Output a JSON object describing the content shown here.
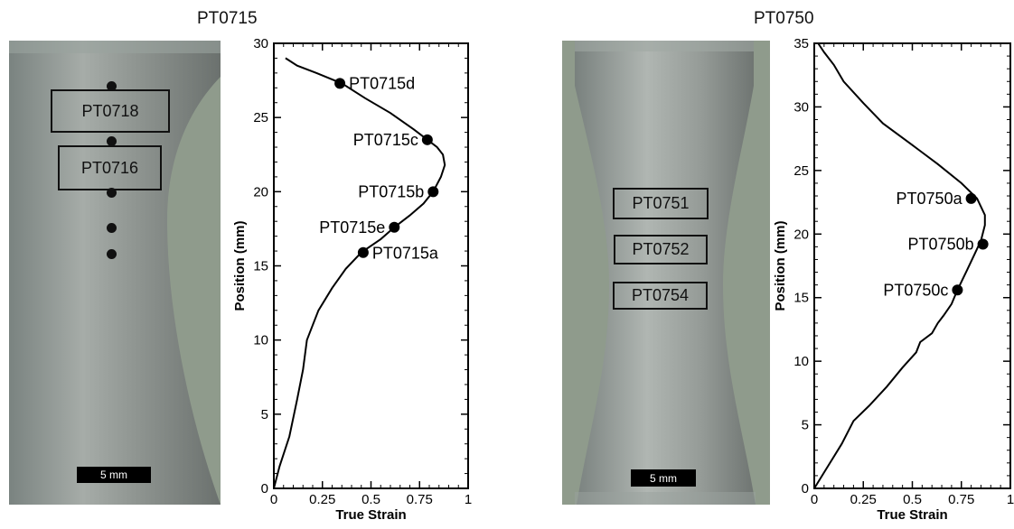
{
  "panels": [
    {
      "title": "PT0715",
      "box_labels": [
        "PT0718",
        "PT0716"
      ],
      "scale_label": "5 mm"
    },
    {
      "title": "PT0750",
      "box_labels": [
        "PT0751",
        "PT0752",
        "PT0754"
      ],
      "scale_label": "5 mm"
    }
  ],
  "colors": {
    "photo_base": "#7d8380",
    "photo_light": "#b5bab6",
    "background_green": "#8f9b8c"
  },
  "chart_data": [
    {
      "type": "line",
      "title": "",
      "xlabel": "True Strain",
      "ylabel": "Position (mm)",
      "xlim": [
        0,
        1
      ],
      "ylim": [
        0,
        30
      ],
      "xticks": [
        0,
        0.25,
        0.5,
        0.75,
        1
      ],
      "xtick_labels": [
        "0",
        "0.25",
        "0.5",
        "0.75",
        "1"
      ],
      "yticks": [
        0,
        5,
        10,
        15,
        20,
        25,
        30
      ],
      "ytick_labels": [
        "0",
        "5",
        "10",
        "15",
        "20",
        "25",
        "30"
      ],
      "grid": false,
      "series": [
        {
          "x": [
            0,
            0.03,
            0.08,
            0.12,
            0.15,
            0.17,
            0.2,
            0.23,
            0.3,
            0.37,
            0.45,
            0.55,
            0.62,
            0.7,
            0.77,
            0.82,
            0.86,
            0.88,
            0.87,
            0.84,
            0.79,
            0.72,
            0.6,
            0.47,
            0.35,
            0.22,
            0.12,
            0.06
          ],
          "y": [
            0,
            1.5,
            3.5,
            6,
            8,
            10,
            11,
            12,
            13.5,
            14.8,
            15.9,
            16.8,
            17.6,
            18.4,
            19.2,
            20.0,
            21,
            21.8,
            22.5,
            23,
            23.5,
            24.2,
            25.3,
            26.3,
            27.3,
            28,
            28.5,
            29
          ]
        }
      ],
      "points": [
        {
          "label": "PT0715d",
          "x": 0.34,
          "y": 27.3
        },
        {
          "label": "PT0715c",
          "x": 0.79,
          "y": 23.5
        },
        {
          "label": "PT0715b",
          "x": 0.82,
          "y": 20.0
        },
        {
          "label": "PT0715e",
          "x": 0.62,
          "y": 17.6
        },
        {
          "label": "PT0715a",
          "x": 0.46,
          "y": 15.9
        }
      ]
    },
    {
      "type": "line",
      "title": "",
      "xlabel": "True Strain",
      "ylabel": "Position (mm)",
      "xlim": [
        0,
        1
      ],
      "ylim": [
        0,
        35
      ],
      "xticks": [
        0,
        0.25,
        0.5,
        0.75,
        1
      ],
      "xtick_labels": [
        "0",
        "0.25",
        "0.5",
        "0.75",
        "1"
      ],
      "yticks": [
        0,
        5,
        10,
        15,
        20,
        25,
        30,
        35
      ],
      "ytick_labels": [
        "0",
        "5",
        "10",
        "15",
        "20",
        "25",
        "30",
        "35"
      ],
      "grid": false,
      "series": [
        {
          "x": [
            0,
            0.06,
            0.14,
            0.2,
            0.28,
            0.37,
            0.45,
            0.52,
            0.54,
            0.6,
            0.63,
            0.66,
            0.7,
            0.73,
            0.78,
            0.82,
            0.85,
            0.87,
            0.87,
            0.83,
            0.75,
            0.63,
            0.5,
            0.35,
            0.25,
            0.15,
            0.1,
            0.05,
            0.02
          ],
          "y": [
            0,
            1.5,
            3.5,
            5.3,
            6.5,
            8,
            9.5,
            10.7,
            11.5,
            12.2,
            13,
            13.6,
            14.5,
            15.6,
            17.2,
            18.5,
            19.5,
            20.7,
            21.5,
            22.8,
            24,
            25.5,
            27,
            28.7,
            30.3,
            32,
            33.3,
            34.3,
            35
          ]
        }
      ],
      "points": [
        {
          "label": "PT0750a",
          "x": 0.8,
          "y": 22.8
        },
        {
          "label": "PT0750b",
          "x": 0.86,
          "y": 19.2
        },
        {
          "label": "PT0750c",
          "x": 0.73,
          "y": 15.6
        }
      ]
    }
  ]
}
